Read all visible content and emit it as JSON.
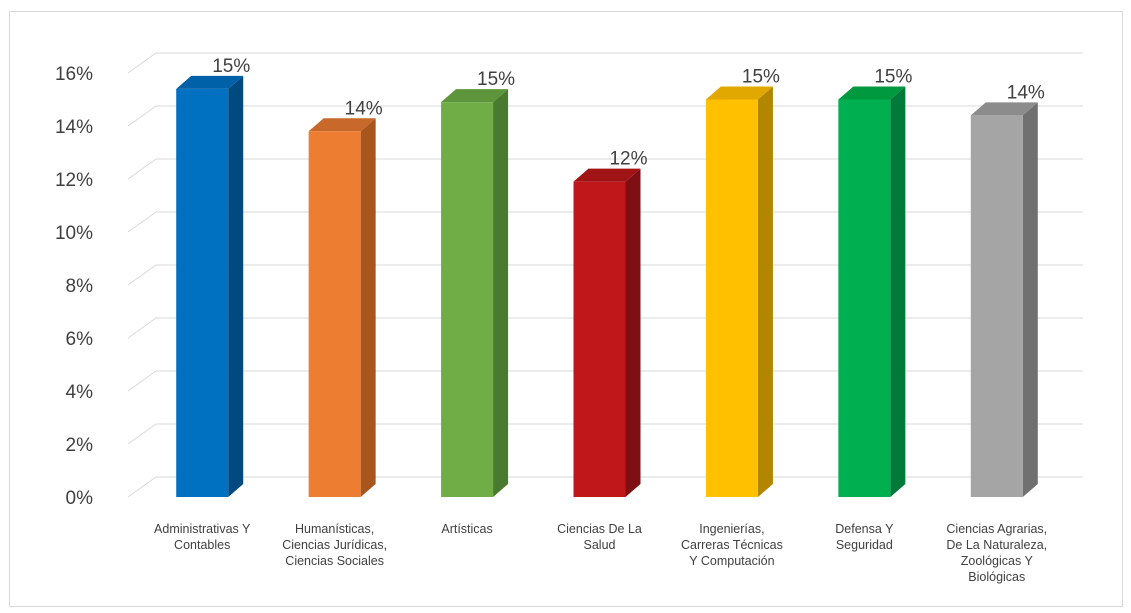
{
  "chart_data": {
    "type": "bar",
    "title": "",
    "xlabel": "",
    "ylabel": "",
    "categories": [
      "Administrativas Y\nContables",
      "Humanísticas,\nCiencias Jurídicas,\nCiencias Sociales",
      "Artísticas",
      "Ciencias De La\nSalud",
      "Ingenierías,\nCarreras Técnicas\nY Computación",
      "Defensa Y\nSeguridad",
      "Ciencias Agrarias,\nDe La Naturaleza,\nZoológicas Y\nBiológicas"
    ],
    "values": [
      0.154,
      0.138,
      0.149,
      0.119,
      0.15,
      0.15,
      0.144
    ],
    "data_labels": [
      "15%",
      "14%",
      "15%",
      "12%",
      "15%",
      "15%",
      "14%"
    ],
    "y_ticks": [
      "0%",
      "2%",
      "4%",
      "6%",
      "8%",
      "10%",
      "12%",
      "14%",
      "16%"
    ],
    "ylim": [
      0,
      0.16
    ],
    "grid": true,
    "legend": "none",
    "style": "3d-column",
    "colors": [
      "#0070c0",
      "#ed7d31",
      "#70ad47",
      "#c0171a",
      "#ffc000",
      "#00b050",
      "#a5a5a5"
    ],
    "side_colors": [
      "#004a80",
      "#a9561e",
      "#4a7a2f",
      "#7f0f12",
      "#b38600",
      "#007a38",
      "#707070"
    ],
    "top_colors": [
      "#0060a8",
      "#c8682a",
      "#5e953c",
      "#a01416",
      "#e0a800",
      "#00993f",
      "#8c8c8c"
    ]
  }
}
